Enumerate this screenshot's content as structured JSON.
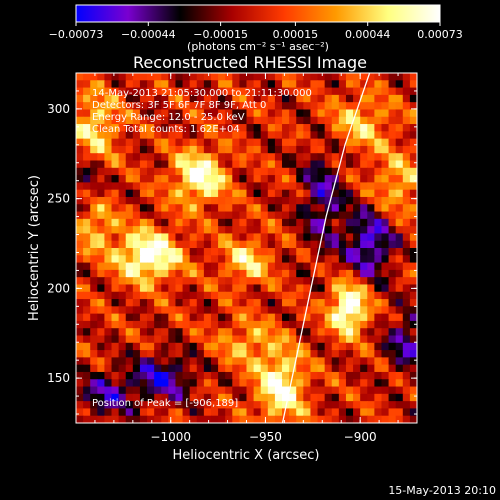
{
  "chart_data": {
    "type": "heatmap",
    "title": "Reconstructed RHESSI Image",
    "xlabel": "Heliocentric X (arcsec)",
    "ylabel": "Heliocentric Y (arcsec)",
    "xlim": [
      -1050,
      -870
    ],
    "ylim": [
      125,
      320
    ],
    "xticks": [
      -1000,
      -950,
      -900
    ],
    "xtick_labels": [
      "−1000",
      "−950",
      "−900"
    ],
    "yticks": [
      150,
      200,
      250,
      300
    ],
    "ytick_labels": [
      "150",
      "200",
      "250",
      "300"
    ],
    "colorbar": {
      "range": [
        -0.00073,
        0.00073
      ],
      "ticks": [
        -0.00073,
        -0.00044,
        -0.00015,
        0.00015,
        0.00044,
        0.00073
      ],
      "tick_labels": [
        "−0.00073",
        "−0.00044",
        "−0.00015",
        "0.00015",
        "0.00044",
        "0.00073"
      ],
      "units_label": "(photons cm⁻² s⁻¹ asec⁻²)",
      "colormap": [
        "#0000ff",
        "#7a00d0",
        "#000000",
        "#a80000",
        "#ff3b00",
        "#ff9a00",
        "#ffff80",
        "#ffffff"
      ]
    },
    "annotations": [
      "14-May-2013 21:05:30.000 to 21:11:30.000",
      "Detectors: 3F 5F 6F 7F 8F 9F, Att 0",
      "Energy Range: 12.0 - 25.0 keV",
      "Clean     Total counts: 1.62E+04"
    ],
    "peak_label": "Position of Peak = [-906,189]",
    "peak": [
      -906,
      189
    ],
    "limb_curve": [
      [
        -941,
        125
      ],
      [
        -934,
        160
      ],
      [
        -926,
        200
      ],
      [
        -918,
        240
      ],
      [
        -908,
        280
      ],
      [
        -895,
        320
      ]
    ],
    "hot_spots": [
      {
        "x": -1012,
        "y": 218,
        "amp": 0.00078,
        "sx": 12,
        "sy": 10
      },
      {
        "x": -985,
        "y": 262,
        "amp": 0.00068,
        "sx": 10,
        "sy": 11
      },
      {
        "x": -1040,
        "y": 290,
        "amp": 0.00048,
        "sx": 9,
        "sy": 14
      },
      {
        "x": -906,
        "y": 189,
        "amp": 0.00085,
        "sx": 7,
        "sy": 10
      },
      {
        "x": -942,
        "y": 145,
        "amp": 0.00068,
        "sx": 9,
        "sy": 14
      },
      {
        "x": -960,
        "y": 215,
        "amp": 0.00048,
        "sx": 9,
        "sy": 9
      },
      {
        "x": -900,
        "y": 292,
        "amp": 0.0004,
        "sx": 12,
        "sy": 11
      },
      {
        "x": -880,
        "y": 258,
        "amp": 0.0004,
        "sx": 10,
        "sy": 12
      },
      {
        "x": -1040,
        "y": 235,
        "amp": 0.0004,
        "sx": 8,
        "sy": 10
      },
      {
        "x": -960,
        "y": 170,
        "amp": 0.00035,
        "sx": 11,
        "sy": 9
      }
    ],
    "cold_spots": [
      {
        "x": -895,
        "y": 225,
        "amp": -0.0006,
        "sx": 9,
        "sy": 14
      },
      {
        "x": -1005,
        "y": 150,
        "amp": -0.00055,
        "sx": 12,
        "sy": 9
      },
      {
        "x": -1035,
        "y": 140,
        "amp": -0.00045,
        "sx": 10,
        "sy": 9
      },
      {
        "x": -920,
        "y": 250,
        "amp": -0.00045,
        "sx": 8,
        "sy": 20
      },
      {
        "x": -875,
        "y": 170,
        "amp": -0.00045,
        "sx": 8,
        "sy": 12
      },
      {
        "x": -1045,
        "y": 260,
        "amp": -0.0003,
        "sx": 6,
        "sy": 10
      }
    ]
  },
  "footer_date": "15-May-2013 20:10"
}
